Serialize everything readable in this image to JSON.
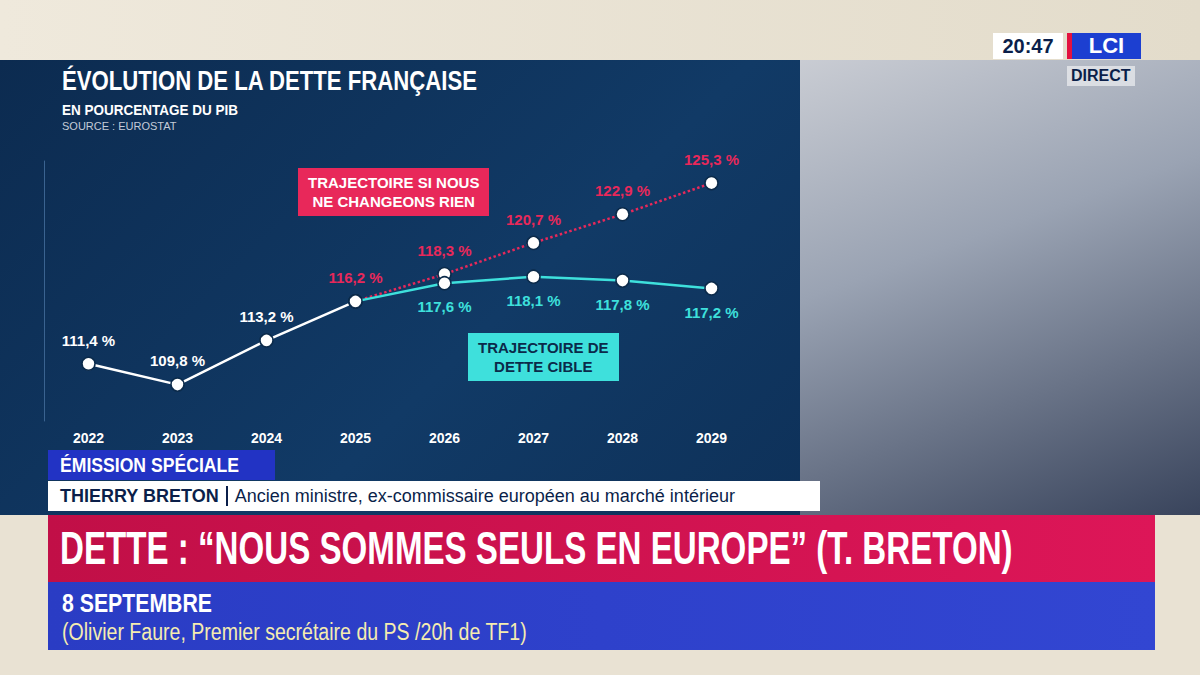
{
  "chart_data": {
    "type": "line",
    "title": "ÉVOLUTION DE LA DETTE FRANÇAISE",
    "subtitle": "EN POURCENTAGE DU PIB",
    "source": "SOURCE : EUROSTAT",
    "categories": [
      "2022",
      "2023",
      "2024",
      "2025",
      "2026",
      "2027",
      "2028",
      "2029"
    ],
    "series": [
      {
        "color": "#ffffff",
        "line_style": "solid",
        "values": [
          111.4,
          109.8,
          113.2,
          116.2,
          null,
          null,
          null,
          null
        ],
        "value_labels": [
          "111,4 %",
          "109,8 %",
          "113,2 %",
          null,
          null,
          null,
          null,
          null
        ]
      },
      {
        "name": "TRAJECTOIRE SI NOUS NE CHANGEONS RIEN",
        "color": "#e8285a",
        "line_style": "dotted",
        "values": [
          null,
          null,
          null,
          116.2,
          118.3,
          120.7,
          122.9,
          125.3
        ],
        "value_labels": [
          null,
          null,
          null,
          "116,2 %",
          "118,3 %",
          "120,7 %",
          "122,9 %",
          "125,3 %"
        ]
      },
      {
        "name": "TRAJECTOIRE DE DETTE CIBLE",
        "color": "#3ee0dc",
        "line_style": "solid",
        "values": [
          null,
          null,
          null,
          116.2,
          117.6,
          118.1,
          117.8,
          117.2
        ],
        "value_labels": [
          null,
          null,
          null,
          null,
          "117,6 %",
          "118,1 %",
          "117,8 %",
          "117,2 %"
        ]
      }
    ],
    "ylim": [
      107,
      127
    ],
    "grid": false,
    "tick_labels": "x",
    "data_labels": true,
    "marker": "circle"
  },
  "screen": {
    "clock": "20:47",
    "channel": "LCI",
    "status": "DIRECT",
    "banner": "ÉMISSION SPÉCIALE",
    "speaker": {
      "name": "THIERRY BRETON",
      "role": "Ancien ministre, ex-commissaire européen au marché intérieur"
    },
    "headline": "DETTE : “NOUS SOMMES SEULS EN EUROPE” (T. BRETON)",
    "ticker": {
      "date": "8 SEPTEMBRE",
      "text": "(Olivier Faure, Premier secrétaire du PS /20h de TF1)"
    }
  }
}
